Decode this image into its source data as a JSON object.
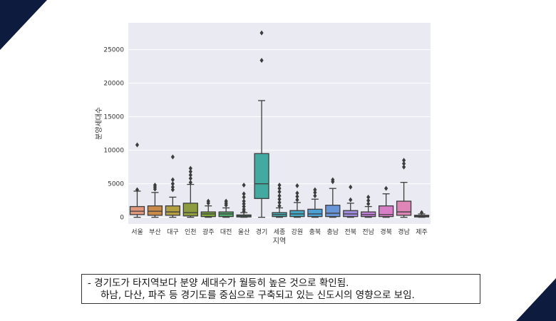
{
  "slide": {
    "caption_line1": "-   경기도가 타지역보다 분양 세대수가 월등히 높은 것으로 확인됨.",
    "caption_line2": "하남, 다산, 파주 등 경기도를 중심으로 구축되고 있는 신도시의 영향으로 보임.",
    "corner_color": "#0d1b3e"
  },
  "chart_data": {
    "type": "box",
    "title": "",
    "xlabel": "지역",
    "ylabel": "분양세대수",
    "ylim": [
      -1000,
      29000
    ],
    "yticks": [
      0,
      5000,
      10000,
      15000,
      20000,
      25000
    ],
    "grid": true,
    "background": "#eaeaf2",
    "categories": [
      "서울",
      "부산",
      "대구",
      "인천",
      "광주",
      "대전",
      "울산",
      "경기",
      "세종",
      "강원",
      "충북",
      "충남",
      "전북",
      "전남",
      "경북",
      "경남",
      "제주"
    ],
    "colors": [
      "#e1987d",
      "#c98a4a",
      "#b3a040",
      "#8c9c3e",
      "#7aa33a",
      "#4fa86a",
      "#45a98f",
      "#42aa9f",
      "#44aab0",
      "#43a6c2",
      "#4aa0d3",
      "#6895d8",
      "#9e8bdc",
      "#c27fd8",
      "#d77fc6",
      "#df85b8",
      "#e090a8"
    ],
    "boxes": [
      {
        "q1": 400,
        "median": 900,
        "q3": 1600,
        "low": 0,
        "high": 3900,
        "fliers": [
          4100,
          10800
        ]
      },
      {
        "q1": 300,
        "median": 900,
        "q3": 1700,
        "low": 0,
        "high": 3700,
        "fliers": [
          4200,
          4500,
          4800
        ]
      },
      {
        "q1": 300,
        "median": 800,
        "q3": 1700,
        "low": 0,
        "high": 3000,
        "fliers": [
          4100,
          4500,
          5000,
          5600,
          9000
        ]
      },
      {
        "q1": 200,
        "median": 700,
        "q3": 2100,
        "low": 0,
        "high": 4900,
        "fliers": [
          5200,
          5800,
          6300,
          6800,
          7300
        ]
      },
      {
        "q1": 100,
        "median": 500,
        "q3": 800,
        "low": 0,
        "high": 1700,
        "fliers": [
          2100,
          2400
        ]
      },
      {
        "q1": 100,
        "median": 500,
        "q3": 800,
        "low": 0,
        "high": 1400,
        "fliers": [
          1800,
          2100,
          2400
        ]
      },
      {
        "q1": 50,
        "median": 200,
        "q3": 350,
        "low": 0,
        "high": 700,
        "fliers": [
          900,
          1200,
          1600,
          2000,
          2400,
          3000,
          3500,
          4800
        ]
      },
      {
        "q1": 2800,
        "median": 5000,
        "q3": 9500,
        "low": 0,
        "high": 17400,
        "fliers": [
          23400,
          27500
        ]
      },
      {
        "q1": 100,
        "median": 400,
        "q3": 700,
        "low": 0,
        "high": 1400,
        "fliers": [
          1700,
          2200,
          2700,
          3200,
          3800,
          4300,
          4800
        ]
      },
      {
        "q1": 100,
        "median": 500,
        "q3": 1000,
        "low": 0,
        "high": 2200,
        "fliers": [
          2600,
          3100,
          3600,
          4700
        ]
      },
      {
        "q1": 100,
        "median": 500,
        "q3": 1200,
        "low": 0,
        "high": 2700,
        "fliers": [
          3200,
          3700,
          4100
        ]
      },
      {
        "q1": 100,
        "median": 600,
        "q3": 1800,
        "low": 0,
        "high": 4300,
        "fliers": [
          5300,
          5600
        ]
      },
      {
        "q1": 100,
        "median": 500,
        "q3": 1000,
        "low": 0,
        "high": 2100,
        "fliers": [
          2600,
          4500
        ]
      },
      {
        "q1": 100,
        "median": 400,
        "q3": 800,
        "low": 0,
        "high": 1600,
        "fliers": [
          2000,
          2500,
          3000
        ]
      },
      {
        "q1": 100,
        "median": 400,
        "q3": 1700,
        "low": 0,
        "high": 3500,
        "fliers": [
          4300
        ]
      },
      {
        "q1": 300,
        "median": 800,
        "q3": 2400,
        "low": 0,
        "high": 5200,
        "fliers": [
          7500,
          8000,
          8500
        ]
      },
      {
        "q1": 50,
        "median": 150,
        "q3": 300,
        "low": 0,
        "high": 500,
        "fliers": [
          700
        ]
      }
    ]
  }
}
